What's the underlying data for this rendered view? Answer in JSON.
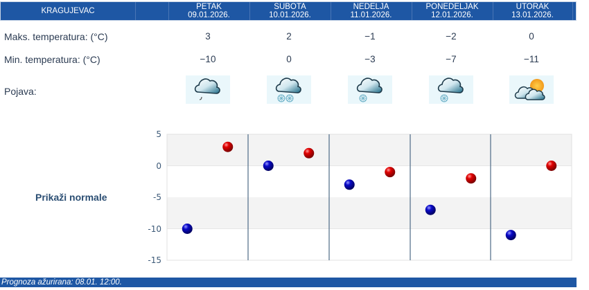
{
  "header": {
    "location": "KRAGUJEVAC",
    "days": [
      {
        "name": "PETAK",
        "date": "09.01.2026."
      },
      {
        "name": "SUBOTA",
        "date": "10.01.2026."
      },
      {
        "name": "NEDELJA",
        "date": "11.01.2026."
      },
      {
        "name": "PONEDELJAK",
        "date": "12.01.2026."
      },
      {
        "name": "UTORAK",
        "date": "13.01.2026."
      }
    ]
  },
  "rows": {
    "max_label": "Maks. temperatura: (°C)",
    "min_label": "Min. temperatura: (°C)",
    "phenomenon_label": "Pojava:",
    "max_values": [
      "3",
      "2",
      "−1",
      "−2",
      "0"
    ],
    "min_values": [
      "−10",
      "0",
      "−3",
      "−7",
      "−11"
    ],
    "phenomena": [
      "cloud-drizzle-icon",
      "cloud-snow-heavy-icon",
      "cloud-snow-icon",
      "cloud-snow-icon",
      "partly-cloudy-icon"
    ]
  },
  "normals_link": "Prikaži normale",
  "footer": {
    "text": "Prognoza ažurirana:  08.01. 12:00."
  },
  "colors": {
    "header_bg": "#1e57a4",
    "max_marker": "#cc0000",
    "min_marker": "#0a0aa8",
    "band": "#f3f3f3"
  },
  "chart_data": {
    "type": "scatter",
    "title": "",
    "xlabel": "",
    "ylabel": "",
    "categories": [
      "PETAK 09.01.2026.",
      "SUBOTA 10.01.2026.",
      "NEDELJA 11.01.2026.",
      "PONEDELJAK 12.01.2026.",
      "UTORAK 13.01.2026."
    ],
    "series": [
      {
        "name": "Min. temperatura (°C)",
        "color": "#0a0aa8",
        "values": [
          -10,
          0,
          -3,
          -7,
          -11
        ]
      },
      {
        "name": "Maks. temperatura (°C)",
        "color": "#cc0000",
        "values": [
          3,
          2,
          -1,
          -2,
          0
        ]
      }
    ],
    "ylim": [
      -15,
      5
    ],
    "yticks": [
      5,
      0,
      -5,
      -10,
      -15
    ],
    "grid": "alternating horizontal bands",
    "legend": "none"
  }
}
